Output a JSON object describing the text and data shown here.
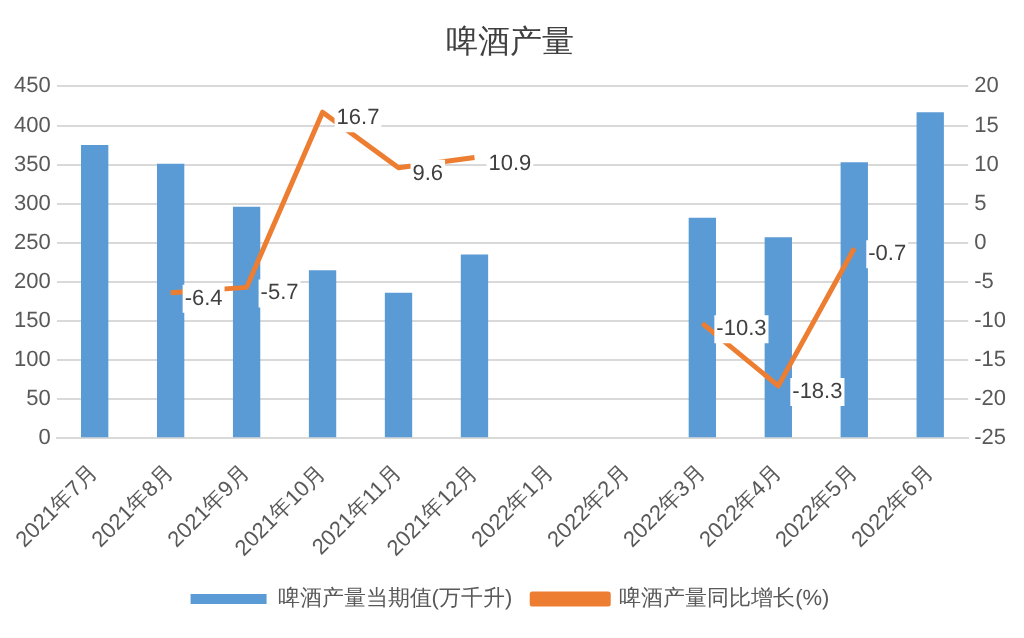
{
  "chart_data": {
    "type": "bar",
    "title": "啤酒产量",
    "categories": [
      "2021年7月",
      "2021年8月",
      "2021年9月",
      "2021年10月",
      "2021年11月",
      "2021年12月",
      "2022年1月",
      "2022年2月",
      "2022年3月",
      "2022年4月",
      "2022年5月",
      "2022年6月"
    ],
    "series": [
      {
        "name": "啤酒产量当期值(万千升)",
        "color": "#5b9bd5",
        "values": [
          375,
          351,
          296,
          215,
          186,
          235,
          null,
          null,
          282,
          257,
          353,
          417
        ]
      },
      {
        "name": "啤酒产量同比增长(%)",
        "type": "line",
        "axis": "y2",
        "color": "#ed7d31",
        "data_labels": true,
        "values": [
          null,
          -6.4,
          -5.7,
          16.7,
          9.6,
          10.9,
          null,
          null,
          -10.3,
          -18.3,
          -0.7,
          null
        ]
      }
    ],
    "ylim": [
      0,
      450
    ],
    "yticks": [
      0,
      50,
      100,
      150,
      200,
      250,
      300,
      350,
      400,
      450
    ],
    "y2lim": [
      -25,
      20
    ],
    "y2ticks": [
      -25,
      -20,
      -15,
      -10,
      -5,
      0,
      5,
      10,
      15,
      20
    ],
    "grid": "y",
    "legend": "bottom",
    "marker": "none"
  }
}
